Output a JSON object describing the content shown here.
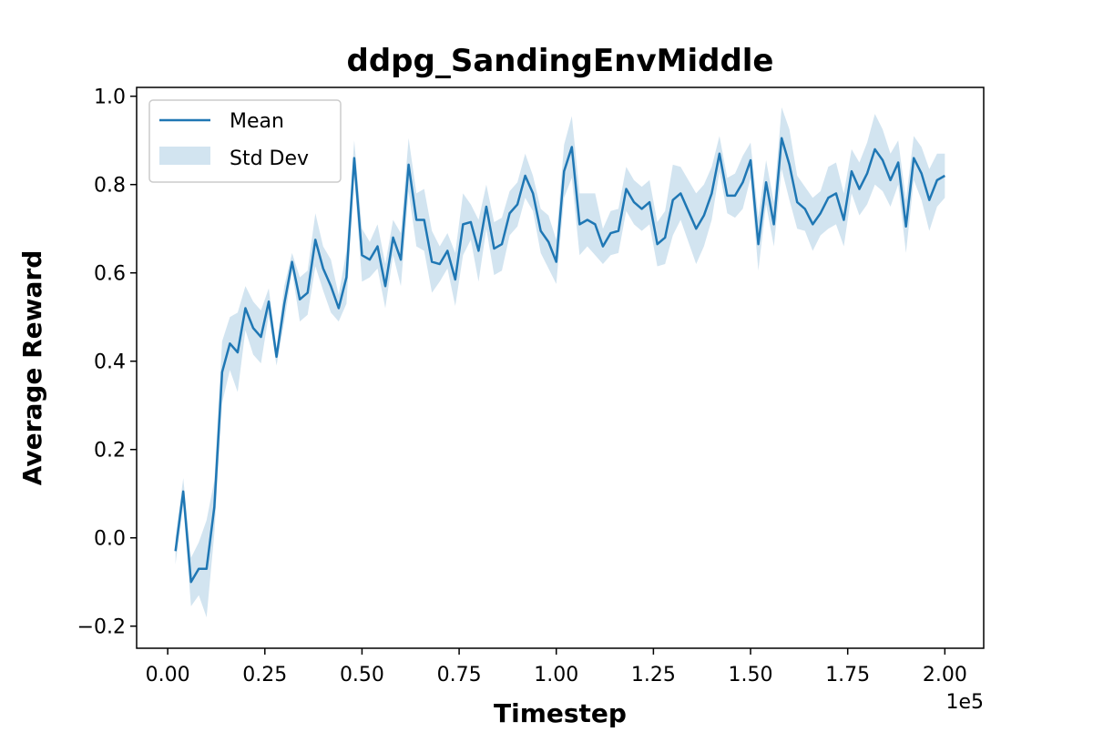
{
  "chart_data": {
    "type": "line",
    "title": "ddpg_SandingEnvMiddle",
    "xlabel": "Timestep",
    "ylabel": "Average Reward",
    "x_offset_label": "1e5",
    "xlim": [
      -0.08,
      2.1
    ],
    "ylim": [
      -0.25,
      1.02
    ],
    "x_ticks": [
      0.0,
      0.25,
      0.5,
      0.75,
      1.0,
      1.25,
      1.5,
      1.75,
      2.0
    ],
    "x_tick_labels": [
      "0.00",
      "0.25",
      "0.50",
      "0.75",
      "1.00",
      "1.25",
      "1.50",
      "1.75",
      "2.00"
    ],
    "y_ticks": [
      -0.2,
      0.0,
      0.2,
      0.4,
      0.6,
      0.8,
      1.0
    ],
    "y_tick_labels": [
      "−0.2",
      "0.0",
      "0.2",
      "0.4",
      "0.6",
      "0.8",
      "1.0"
    ],
    "grid": false,
    "legend": {
      "position": "top-left",
      "entries": [
        {
          "label": "Mean",
          "kind": "line"
        },
        {
          "label": "Std Dev",
          "kind": "band"
        }
      ]
    },
    "colors": {
      "line": "#1f77b4",
      "band": "#1f77b4",
      "band_opacity": 0.2
    },
    "series": [
      {
        "name": "Mean",
        "x": [
          0.02,
          0.04,
          0.06,
          0.08,
          0.1,
          0.12,
          0.14,
          0.16,
          0.18,
          0.2,
          0.22,
          0.24,
          0.26,
          0.28,
          0.3,
          0.32,
          0.34,
          0.36,
          0.38,
          0.4,
          0.42,
          0.44,
          0.46,
          0.48,
          0.5,
          0.52,
          0.54,
          0.56,
          0.58,
          0.6,
          0.62,
          0.64,
          0.66,
          0.68,
          0.7,
          0.72,
          0.74,
          0.76,
          0.78,
          0.8,
          0.82,
          0.84,
          0.86,
          0.88,
          0.9,
          0.92,
          0.94,
          0.96,
          0.98,
          1.0,
          1.02,
          1.04,
          1.06,
          1.08,
          1.1,
          1.12,
          1.14,
          1.16,
          1.18,
          1.2,
          1.22,
          1.24,
          1.26,
          1.28,
          1.3,
          1.32,
          1.34,
          1.36,
          1.38,
          1.4,
          1.42,
          1.44,
          1.46,
          1.48,
          1.5,
          1.52,
          1.54,
          1.56,
          1.58,
          1.6,
          1.62,
          1.64,
          1.66,
          1.68,
          1.7,
          1.72,
          1.74,
          1.76,
          1.78,
          1.8,
          1.82,
          1.84,
          1.86,
          1.88,
          1.9,
          1.92,
          1.94,
          1.96,
          1.98,
          2.0
        ],
        "mean": [
          -0.03,
          0.105,
          -0.1,
          -0.07,
          -0.07,
          0.07,
          0.375,
          0.44,
          0.42,
          0.52,
          0.475,
          0.455,
          0.535,
          0.41,
          0.53,
          0.625,
          0.54,
          0.555,
          0.675,
          0.61,
          0.57,
          0.52,
          0.59,
          0.86,
          0.64,
          0.63,
          0.66,
          0.57,
          0.68,
          0.63,
          0.845,
          0.72,
          0.72,
          0.625,
          0.62,
          0.65,
          0.585,
          0.71,
          0.715,
          0.65,
          0.75,
          0.655,
          0.665,
          0.735,
          0.755,
          0.82,
          0.78,
          0.695,
          0.67,
          0.625,
          0.83,
          0.885,
          0.71,
          0.72,
          0.71,
          0.66,
          0.69,
          0.695,
          0.79,
          0.76,
          0.745,
          0.76,
          0.665,
          0.68,
          0.765,
          0.78,
          0.74,
          0.7,
          0.73,
          0.78,
          0.87,
          0.775,
          0.775,
          0.805,
          0.855,
          0.665,
          0.805,
          0.71,
          0.905,
          0.845,
          0.76,
          0.745,
          0.71,
          0.735,
          0.77,
          0.78,
          0.72,
          0.83,
          0.79,
          0.825,
          0.88,
          0.855,
          0.81,
          0.85,
          0.705,
          0.86,
          0.825,
          0.765,
          0.81,
          0.82
        ],
        "std": [
          0.03,
          0.03,
          0.055,
          0.06,
          0.11,
          0.06,
          0.07,
          0.06,
          0.09,
          0.05,
          0.06,
          0.06,
          0.03,
          0.02,
          0.04,
          0.02,
          0.05,
          0.05,
          0.06,
          0.05,
          0.06,
          0.03,
          0.06,
          0.04,
          0.06,
          0.04,
          0.05,
          0.05,
          0.04,
          0.06,
          0.06,
          0.06,
          0.07,
          0.07,
          0.04,
          0.04,
          0.06,
          0.07,
          0.04,
          0.07,
          0.05,
          0.06,
          0.06,
          0.05,
          0.05,
          0.05,
          0.04,
          0.05,
          0.06,
          0.05,
          0.06,
          0.07,
          0.07,
          0.06,
          0.07,
          0.04,
          0.05,
          0.05,
          0.05,
          0.05,
          0.05,
          0.05,
          0.05,
          0.06,
          0.08,
          0.06,
          0.07,
          0.08,
          0.07,
          0.06,
          0.04,
          0.04,
          0.05,
          0.06,
          0.04,
          0.06,
          0.05,
          0.05,
          0.07,
          0.08,
          0.06,
          0.05,
          0.06,
          0.05,
          0.07,
          0.07,
          0.06,
          0.05,
          0.06,
          0.07,
          0.08,
          0.07,
          0.06,
          0.05,
          0.06,
          0.05,
          0.06,
          0.07,
          0.06,
          0.05
        ]
      }
    ]
  }
}
